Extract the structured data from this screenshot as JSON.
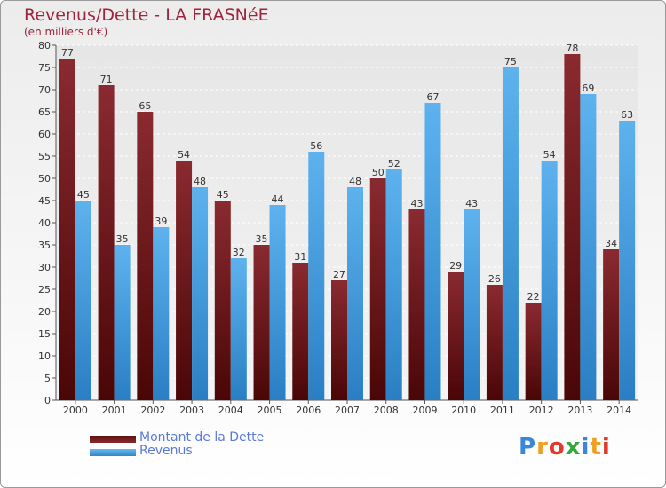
{
  "title": "Revenus/Dette - LA FRASNéE",
  "subtitle": "(en milliers d'€)",
  "brand": {
    "letters": [
      {
        "ch": "P",
        "color": "#3a86d8"
      },
      {
        "ch": "r",
        "color": "#f0a020"
      },
      {
        "ch": "o",
        "color": "#e03a2a"
      },
      {
        "ch": "x",
        "color": "#35a83a"
      },
      {
        "ch": "i",
        "color": "#3a86d8"
      },
      {
        "ch": "t",
        "color": "#f0a020"
      },
      {
        "ch": "i",
        "color": "#e03a2a"
      }
    ]
  },
  "legend": [
    {
      "label": "Montant de la Dette",
      "color": "#6e1a1a"
    },
    {
      "label": "Revenus",
      "color": "#4aa3e6"
    }
  ],
  "chart_data": {
    "type": "bar",
    "title": "Revenus/Dette - LA FRASNéE",
    "subtitle": "(en milliers d'€)",
    "categories": [
      "2000",
      "2001",
      "2002",
      "2003",
      "2004",
      "2005",
      "2006",
      "2007",
      "2008",
      "2009",
      "2010",
      "2011",
      "2012",
      "2013",
      "2014"
    ],
    "series": [
      {
        "name": "Montant de la Dette",
        "color": "#7a1f24",
        "values": [
          77,
          71,
          65,
          54,
          45,
          35,
          31,
          27,
          50,
          43,
          29,
          26,
          22,
          78,
          34
        ]
      },
      {
        "name": "Revenus",
        "color": "#4aa3e6",
        "values": [
          45,
          35,
          39,
          48,
          32,
          44,
          56,
          48,
          52,
          67,
          43,
          75,
          54,
          69,
          63
        ]
      }
    ],
    "yticks": [
      0,
      5,
      10,
      15,
      20,
      25,
      30,
      35,
      40,
      45,
      50,
      55,
      60,
      65,
      70,
      75,
      80
    ],
    "ylim": [
      0,
      80
    ],
    "grid": true,
    "legend_position": "bottom-left"
  }
}
